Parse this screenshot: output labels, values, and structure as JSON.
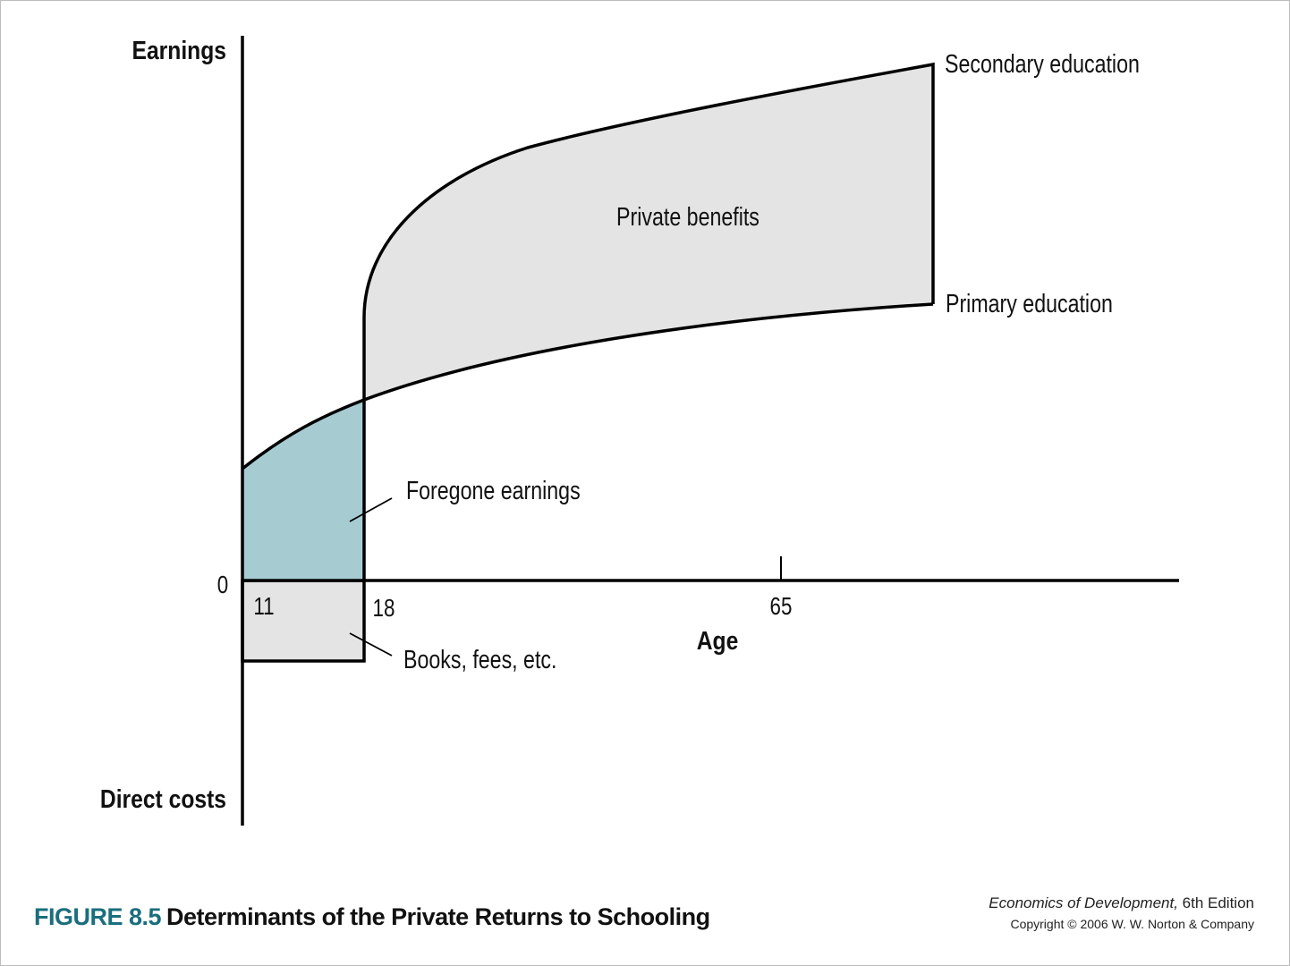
{
  "diagram": {
    "axes": {
      "y_top_label": "Earnings",
      "y_bottom_label": "Direct costs",
      "x_label": "Age",
      "origin_label": "0",
      "ticks": [
        "11",
        "18",
        "65"
      ]
    },
    "curves": {
      "secondary": "Secondary education",
      "primary": "Primary education"
    },
    "regions": {
      "benefits": "Private benefits",
      "foregone": "Foregone earnings",
      "costs": "Books, fees, etc."
    },
    "colors": {
      "foregone_fill": "#a6ccd2",
      "benefits_fill": "#e4e4e4",
      "costs_fill": "#e4e4e4",
      "line": "#000000"
    }
  },
  "caption": {
    "figure_number": "FIGURE 8.5",
    "title": "Determinants of the Private Returns to Schooling"
  },
  "credit": {
    "book": "Economics of Development,",
    "edition": " 6th Edition",
    "copyright": "Copyright © 2006 W. W. Norton & Company"
  }
}
